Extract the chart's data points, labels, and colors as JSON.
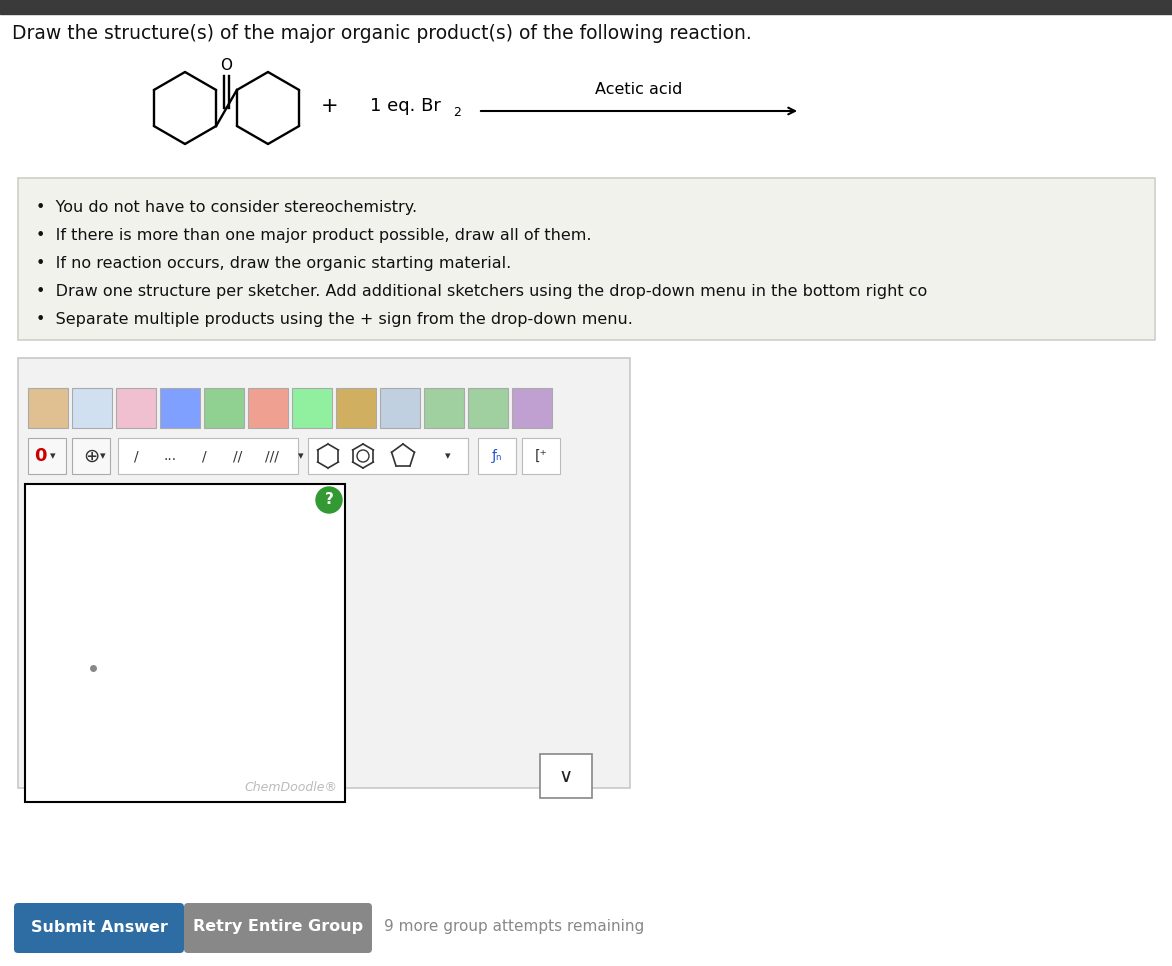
{
  "title": "Draw the structure(s) of the major organic product(s) of the following reaction.",
  "bullet_points": [
    "You do not have to consider stereochemistry.",
    "If there is more than one major product possible, draw all of them.",
    "If no reaction occurs, draw the organic starting material.",
    "Draw one structure per sketcher. Add additional sketchers using the drop-down menu in the bottom right co",
    "Separate multiple products using the + sign from the drop-down menu."
  ],
  "condition_text": "Acetic acid",
  "bg_color": "#ffffff",
  "header_bg": "#3a3a3a",
  "bullet_bg": "#f2f2ed",
  "submit_btn_color": "#2e6da4",
  "retry_btn_color": "#888888",
  "submit_btn_text": "Submit Answer",
  "retry_btn_text": "Retry Entire Group",
  "attempts_text": "9 more group attempts remaining",
  "chemdoodle_text": "ChemDoodle"
}
